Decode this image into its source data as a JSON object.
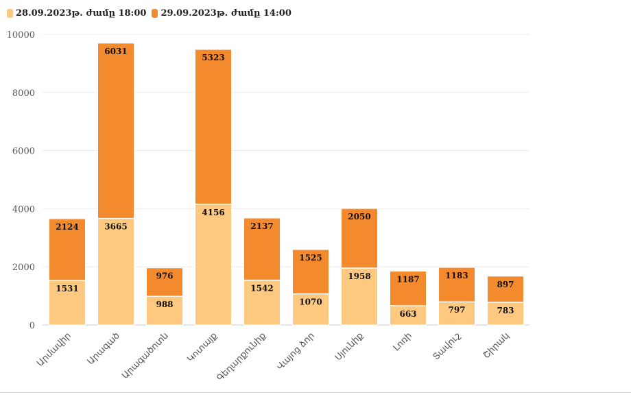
{
  "chart_data": {
    "type": "bar",
    "stacked": true,
    "categories": [
      "Արմավիր",
      "Արագած",
      "Արագածոտն",
      "Կոտայք",
      "Գեղարքունիք",
      "Վայոց ձոր",
      "Սյունիք",
      "Լոռի",
      "Տավուշ",
      "Շիրակ"
    ],
    "series": [
      {
        "name": "28.09.2023թ. ժամը 18:00",
        "color": "#fdc880",
        "values": [
          1531,
          3665,
          988,
          4156,
          1542,
          1070,
          1958,
          663,
          797,
          783
        ]
      },
      {
        "name": "29.09.2023թ. ժամը 14:00",
        "color": "#f48a2e",
        "values": [
          2124,
          6031,
          976,
          5323,
          2137,
          1525,
          2050,
          1187,
          1183,
          897
        ]
      }
    ],
    "ylim": [
      0,
      10000
    ],
    "yticks": [
      0,
      2000,
      4000,
      6000,
      8000,
      10000
    ],
    "grid": true,
    "legend": "top-left"
  }
}
